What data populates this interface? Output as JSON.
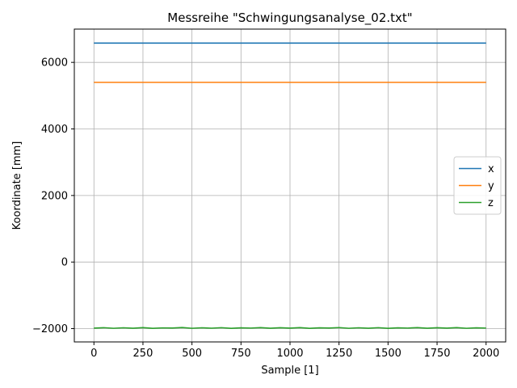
{
  "chart_data": {
    "type": "line",
    "title": "Messreihe \"Schwingungsanalyse_02.txt\"",
    "xlabel": "Sample [1]",
    "ylabel": "Koordinate [mm]",
    "xlim": [
      -100,
      2100
    ],
    "ylim": [
      -2400,
      7000
    ],
    "xticks": [
      0,
      250,
      500,
      750,
      1000,
      1250,
      1500,
      1750,
      2000
    ],
    "xtick_labels": [
      "0",
      "250",
      "500",
      "750",
      "1000",
      "1250",
      "1500",
      "1750",
      "2000"
    ],
    "yticks": [
      -2000,
      0,
      2000,
      4000,
      6000
    ],
    "ytick_labels": [
      "−2000",
      "0",
      "2000",
      "4000",
      "6000"
    ],
    "grid": true,
    "legend_position": "center-right",
    "series": [
      {
        "name": "x",
        "color": "#1f77b4",
        "x": [
          0,
          250,
          500,
          750,
          1000,
          1250,
          1500,
          1750,
          2000
        ],
        "values": [
          6580,
          6580,
          6580,
          6580,
          6580,
          6580,
          6580,
          6580,
          6580
        ]
      },
      {
        "name": "y",
        "color": "#ff7f0e",
        "x": [
          0,
          250,
          500,
          750,
          1000,
          1250,
          1500,
          1750,
          2000
        ],
        "values": [
          5400,
          5400,
          5400,
          5400,
          5400,
          5400,
          5400,
          5400,
          5400
        ]
      },
      {
        "name": "z",
        "color": "#2ca02c",
        "x": [
          0,
          50,
          100,
          150,
          200,
          250,
          300,
          350,
          400,
          450,
          500,
          550,
          600,
          650,
          700,
          750,
          800,
          850,
          900,
          950,
          1000,
          1050,
          1100,
          1150,
          1200,
          1250,
          1300,
          1350,
          1400,
          1450,
          1500,
          1550,
          1600,
          1650,
          1700,
          1750,
          1800,
          1850,
          1900,
          1950,
          2000
        ],
        "values": [
          -1985,
          -1972,
          -1990,
          -1975,
          -1988,
          -1970,
          -1992,
          -1978,
          -1983,
          -1968,
          -1990,
          -1975,
          -1987,
          -1972,
          -1991,
          -1976,
          -1984,
          -1970,
          -1989,
          -1974,
          -1986,
          -1971,
          -1992,
          -1977,
          -1983,
          -1969,
          -1990,
          -1975,
          -1988,
          -1972,
          -1991,
          -1976,
          -1984,
          -1970,
          -1989,
          -1974,
          -1986,
          -1971,
          -1990,
          -1977,
          -1984
        ]
      }
    ]
  }
}
